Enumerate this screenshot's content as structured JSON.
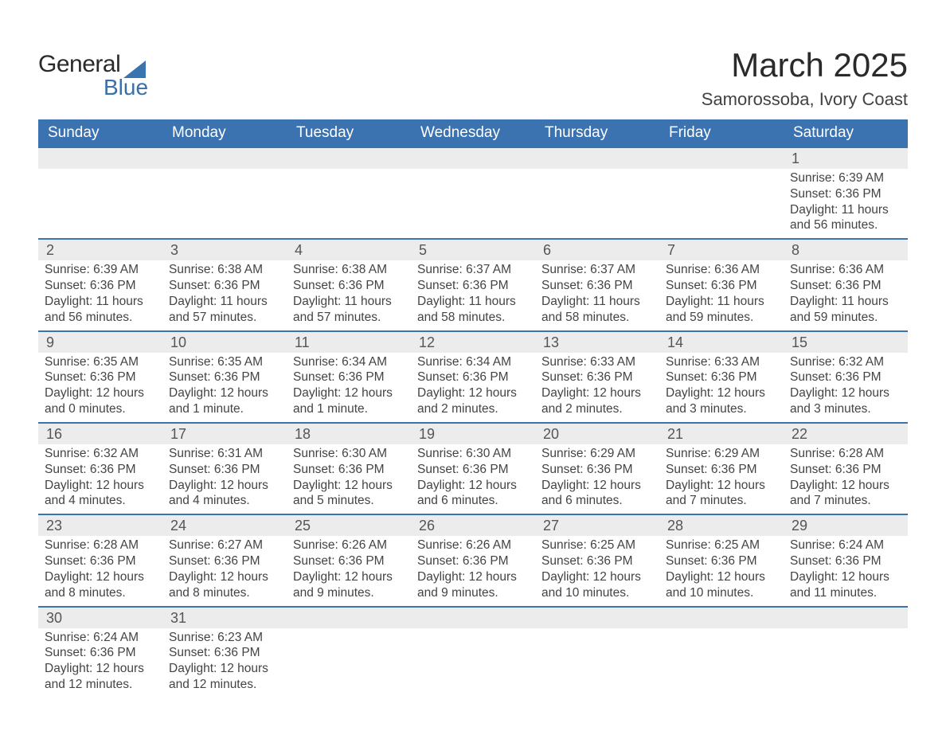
{
  "logo": {
    "text1": "General",
    "text2": "Blue",
    "triangle_color": "#3b72b0"
  },
  "header": {
    "month_title": "March 2025",
    "location": "Samorossoba, Ivory Coast"
  },
  "colors": {
    "header_bg": "#3b72b0",
    "header_text": "#ffffff",
    "daynum_bg": "#ececec",
    "week_divider": "#3b72b0",
    "body_text": "#444444"
  },
  "days_of_week": [
    "Sunday",
    "Monday",
    "Tuesday",
    "Wednesday",
    "Thursday",
    "Friday",
    "Saturday"
  ],
  "weeks": [
    [
      null,
      null,
      null,
      null,
      null,
      null,
      {
        "n": "1",
        "sr": "Sunrise: 6:39 AM",
        "ss": "Sunset: 6:36 PM",
        "d1": "Daylight: 11 hours",
        "d2": "and 56 minutes."
      }
    ],
    [
      {
        "n": "2",
        "sr": "Sunrise: 6:39 AM",
        "ss": "Sunset: 6:36 PM",
        "d1": "Daylight: 11 hours",
        "d2": "and 56 minutes."
      },
      {
        "n": "3",
        "sr": "Sunrise: 6:38 AM",
        "ss": "Sunset: 6:36 PM",
        "d1": "Daylight: 11 hours",
        "d2": "and 57 minutes."
      },
      {
        "n": "4",
        "sr": "Sunrise: 6:38 AM",
        "ss": "Sunset: 6:36 PM",
        "d1": "Daylight: 11 hours",
        "d2": "and 57 minutes."
      },
      {
        "n": "5",
        "sr": "Sunrise: 6:37 AM",
        "ss": "Sunset: 6:36 PM",
        "d1": "Daylight: 11 hours",
        "d2": "and 58 minutes."
      },
      {
        "n": "6",
        "sr": "Sunrise: 6:37 AM",
        "ss": "Sunset: 6:36 PM",
        "d1": "Daylight: 11 hours",
        "d2": "and 58 minutes."
      },
      {
        "n": "7",
        "sr": "Sunrise: 6:36 AM",
        "ss": "Sunset: 6:36 PM",
        "d1": "Daylight: 11 hours",
        "d2": "and 59 minutes."
      },
      {
        "n": "8",
        "sr": "Sunrise: 6:36 AM",
        "ss": "Sunset: 6:36 PM",
        "d1": "Daylight: 11 hours",
        "d2": "and 59 minutes."
      }
    ],
    [
      {
        "n": "9",
        "sr": "Sunrise: 6:35 AM",
        "ss": "Sunset: 6:36 PM",
        "d1": "Daylight: 12 hours",
        "d2": "and 0 minutes."
      },
      {
        "n": "10",
        "sr": "Sunrise: 6:35 AM",
        "ss": "Sunset: 6:36 PM",
        "d1": "Daylight: 12 hours",
        "d2": "and 1 minute."
      },
      {
        "n": "11",
        "sr": "Sunrise: 6:34 AM",
        "ss": "Sunset: 6:36 PM",
        "d1": "Daylight: 12 hours",
        "d2": "and 1 minute."
      },
      {
        "n": "12",
        "sr": "Sunrise: 6:34 AM",
        "ss": "Sunset: 6:36 PM",
        "d1": "Daylight: 12 hours",
        "d2": "and 2 minutes."
      },
      {
        "n": "13",
        "sr": "Sunrise: 6:33 AM",
        "ss": "Sunset: 6:36 PM",
        "d1": "Daylight: 12 hours",
        "d2": "and 2 minutes."
      },
      {
        "n": "14",
        "sr": "Sunrise: 6:33 AM",
        "ss": "Sunset: 6:36 PM",
        "d1": "Daylight: 12 hours",
        "d2": "and 3 minutes."
      },
      {
        "n": "15",
        "sr": "Sunrise: 6:32 AM",
        "ss": "Sunset: 6:36 PM",
        "d1": "Daylight: 12 hours",
        "d2": "and 3 minutes."
      }
    ],
    [
      {
        "n": "16",
        "sr": "Sunrise: 6:32 AM",
        "ss": "Sunset: 6:36 PM",
        "d1": "Daylight: 12 hours",
        "d2": "and 4 minutes."
      },
      {
        "n": "17",
        "sr": "Sunrise: 6:31 AM",
        "ss": "Sunset: 6:36 PM",
        "d1": "Daylight: 12 hours",
        "d2": "and 4 minutes."
      },
      {
        "n": "18",
        "sr": "Sunrise: 6:30 AM",
        "ss": "Sunset: 6:36 PM",
        "d1": "Daylight: 12 hours",
        "d2": "and 5 minutes."
      },
      {
        "n": "19",
        "sr": "Sunrise: 6:30 AM",
        "ss": "Sunset: 6:36 PM",
        "d1": "Daylight: 12 hours",
        "d2": "and 6 minutes."
      },
      {
        "n": "20",
        "sr": "Sunrise: 6:29 AM",
        "ss": "Sunset: 6:36 PM",
        "d1": "Daylight: 12 hours",
        "d2": "and 6 minutes."
      },
      {
        "n": "21",
        "sr": "Sunrise: 6:29 AM",
        "ss": "Sunset: 6:36 PM",
        "d1": "Daylight: 12 hours",
        "d2": "and 7 minutes."
      },
      {
        "n": "22",
        "sr": "Sunrise: 6:28 AM",
        "ss": "Sunset: 6:36 PM",
        "d1": "Daylight: 12 hours",
        "d2": "and 7 minutes."
      }
    ],
    [
      {
        "n": "23",
        "sr": "Sunrise: 6:28 AM",
        "ss": "Sunset: 6:36 PM",
        "d1": "Daylight: 12 hours",
        "d2": "and 8 minutes."
      },
      {
        "n": "24",
        "sr": "Sunrise: 6:27 AM",
        "ss": "Sunset: 6:36 PM",
        "d1": "Daylight: 12 hours",
        "d2": "and 8 minutes."
      },
      {
        "n": "25",
        "sr": "Sunrise: 6:26 AM",
        "ss": "Sunset: 6:36 PM",
        "d1": "Daylight: 12 hours",
        "d2": "and 9 minutes."
      },
      {
        "n": "26",
        "sr": "Sunrise: 6:26 AM",
        "ss": "Sunset: 6:36 PM",
        "d1": "Daylight: 12 hours",
        "d2": "and 9 minutes."
      },
      {
        "n": "27",
        "sr": "Sunrise: 6:25 AM",
        "ss": "Sunset: 6:36 PM",
        "d1": "Daylight: 12 hours",
        "d2": "and 10 minutes."
      },
      {
        "n": "28",
        "sr": "Sunrise: 6:25 AM",
        "ss": "Sunset: 6:36 PM",
        "d1": "Daylight: 12 hours",
        "d2": "and 10 minutes."
      },
      {
        "n": "29",
        "sr": "Sunrise: 6:24 AM",
        "ss": "Sunset: 6:36 PM",
        "d1": "Daylight: 12 hours",
        "d2": "and 11 minutes."
      }
    ],
    [
      {
        "n": "30",
        "sr": "Sunrise: 6:24 AM",
        "ss": "Sunset: 6:36 PM",
        "d1": "Daylight: 12 hours",
        "d2": "and 12 minutes."
      },
      {
        "n": "31",
        "sr": "Sunrise: 6:23 AM",
        "ss": "Sunset: 6:36 PM",
        "d1": "Daylight: 12 hours",
        "d2": "and 12 minutes."
      },
      null,
      null,
      null,
      null,
      null
    ]
  ]
}
